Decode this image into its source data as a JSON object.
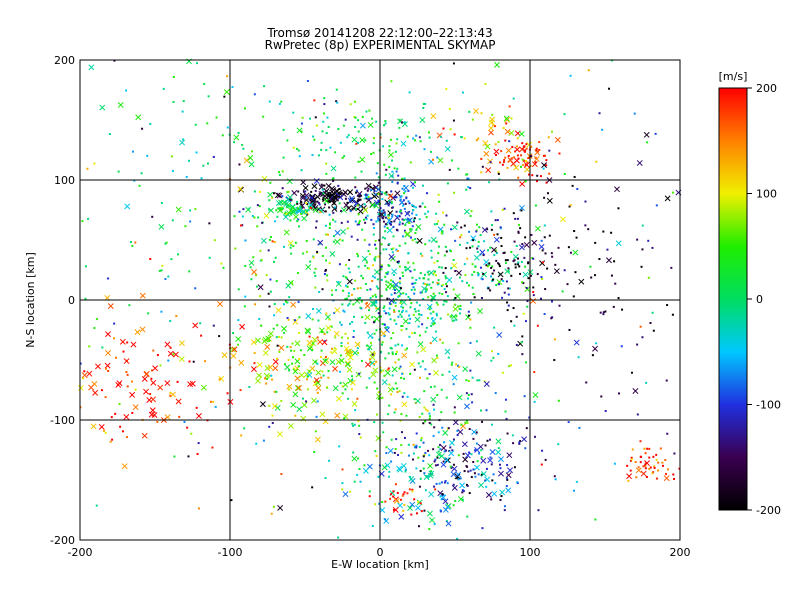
{
  "chart_data": {
    "type": "scatter",
    "title": "Tromsø 20141208 22:12:00–22:13:43",
    "subtitle": "RwPretec (8p) EXPERIMENTAL SKYMAP",
    "xlabel": "E-W location [km]",
    "ylabel": "N-S location [km]",
    "xlim": [
      -200,
      200
    ],
    "ylim": [
      -200,
      200
    ],
    "xticks": [
      "-200",
      "-100",
      "0",
      "100",
      "200"
    ],
    "yticks": [
      "-200",
      "-100",
      "0",
      "100",
      "200"
    ],
    "grid": true,
    "colorbar": {
      "label": "[m/s]",
      "range": [
        -200,
        200
      ],
      "ticks": [
        "200",
        "100",
        "0",
        "-100",
        "-200"
      ],
      "colormap": [
        "#000000",
        "#3a0050",
        "#2030e0",
        "#00c8ff",
        "#00dd60",
        "#20ee00",
        "#f0f000",
        "#ff8000",
        "#ff0000"
      ]
    },
    "markers": [
      "dot",
      "x"
    ],
    "clusters": [
      {
        "x": -30,
        "y": 85,
        "spread": [
          18,
          6
        ],
        "count": 160,
        "velocity": -190,
        "marker": "x"
      },
      {
        "x": 5,
        "y": 75,
        "spread": [
          12,
          12
        ],
        "count": 150,
        "velocity": -100,
        "marker": "dot"
      },
      {
        "x": -60,
        "y": 75,
        "spread": [
          10,
          5
        ],
        "count": 60,
        "velocity": 20,
        "marker": "x"
      },
      {
        "x": 95,
        "y": 120,
        "spread": [
          12,
          8
        ],
        "count": 80,
        "velocity": 190,
        "marker": "dot"
      },
      {
        "x": 80,
        "y": 140,
        "spread": [
          20,
          10
        ],
        "count": 40,
        "velocity": 130,
        "marker": "x"
      },
      {
        "x": -10,
        "y": 130,
        "spread": [
          40,
          20
        ],
        "count": 110,
        "velocity": 10,
        "marker": "dot"
      },
      {
        "x": 40,
        "y": 30,
        "spread": [
          35,
          30
        ],
        "count": 210,
        "velocity": 0,
        "marker": "dot"
      },
      {
        "x": 80,
        "y": 30,
        "spread": [
          25,
          25
        ],
        "count": 110,
        "velocity": -180,
        "marker": "dot"
      },
      {
        "x": -15,
        "y": 40,
        "spread": [
          50,
          40
        ],
        "count": 200,
        "velocity": 30,
        "marker": "dot"
      },
      {
        "x": 10,
        "y": -5,
        "spread": [
          20,
          18
        ],
        "count": 170,
        "velocity": -5,
        "marker": "dot"
      },
      {
        "x": -40,
        "y": -55,
        "spread": [
          30,
          22
        ],
        "count": 190,
        "velocity": 90,
        "marker": "x"
      },
      {
        "x": 20,
        "y": -75,
        "spread": [
          40,
          35
        ],
        "count": 180,
        "velocity": 30,
        "marker": "dot"
      },
      {
        "x": -160,
        "y": -70,
        "spread": [
          30,
          25
        ],
        "count": 120,
        "velocity": 190,
        "marker": "x"
      },
      {
        "x": 55,
        "y": -135,
        "spread": [
          28,
          22
        ],
        "count": 170,
        "velocity": -120,
        "marker": "dot"
      },
      {
        "x": 30,
        "y": -150,
        "spread": [
          30,
          18
        ],
        "count": 90,
        "velocity": -40,
        "marker": "x"
      },
      {
        "x": 15,
        "y": -165,
        "spread": [
          10,
          6
        ],
        "count": 30,
        "velocity": 190,
        "marker": "dot"
      },
      {
        "x": 180,
        "y": -135,
        "spread": [
          7,
          10
        ],
        "count": 50,
        "velocity": 190,
        "marker": "dot"
      },
      {
        "x": 140,
        "y": 30,
        "spread": [
          45,
          50
        ],
        "count": 80,
        "velocity": -160,
        "marker": "dot"
      },
      {
        "x": -130,
        "y": 100,
        "spread": [
          55,
          70
        ],
        "count": 120,
        "velocity": 0,
        "marker": "dot"
      },
      {
        "x": 0,
        "y": 0,
        "spread": [
          115,
          115
        ],
        "count": 420,
        "velocity": 0,
        "marker": "dot"
      }
    ]
  }
}
